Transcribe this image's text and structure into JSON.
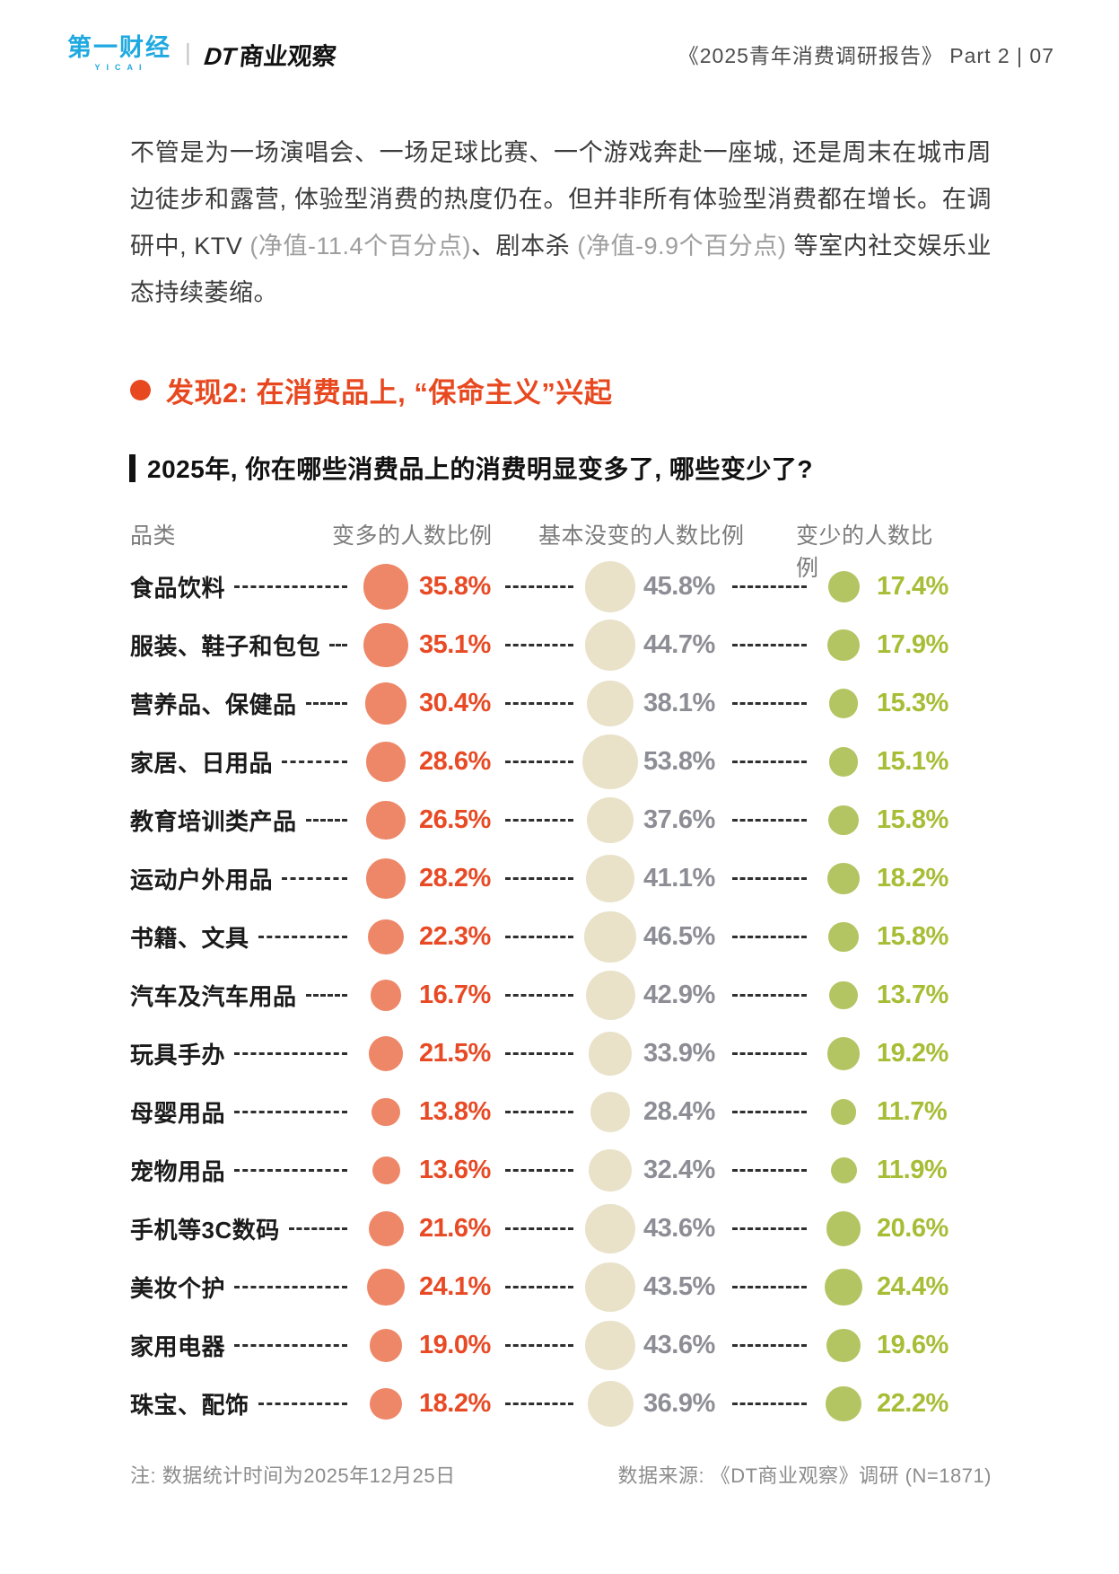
{
  "header": {
    "brand_cn": "第一财经",
    "brand_en": "YICAI",
    "separator": "|",
    "brand2_dt": "DT",
    "brand2_cn": "商业观察",
    "doc_title": "《2025青年消费调研报告》  Part 2  |  07"
  },
  "intro": {
    "segments": [
      {
        "text": "不管是为一场演唱会、一场足球比赛、一个游戏奔赴一座城, 还是周末在城市周边徒步和露营, 体验型消费的热度仍在。但并非所有体验型消费都在增长。在调研中, KTV ",
        "muted": false
      },
      {
        "text": "(净值-11.4个百分点)",
        "muted": true
      },
      {
        "text": "、剧本杀 ",
        "muted": false
      },
      {
        "text": "(净值-9.9个百分点)",
        "muted": true
      },
      {
        "text": " 等室内社交娱乐业态持续萎缩。",
        "muted": false
      }
    ]
  },
  "finding": {
    "label": "发现2: 在消费品上, “保命主义”兴起"
  },
  "question": "2025年, 你在哪些消费品上的消费明显变多了, 哪些变少了?",
  "table": {
    "headers": [
      "品类",
      "变多的人数比例",
      "基本没变的人数比例",
      "变少的人数比例"
    ]
  },
  "chart_data": {
    "type": "table",
    "subtype": "bubble-table",
    "title": "2025年, 你在哪些消费品上的消费明显变多了, 哪些变少了?",
    "categories": [
      "食品饮料",
      "服装、鞋子和包包",
      "营养品、保健品",
      "家居、日用品",
      "教育培训类产品",
      "运动户外用品",
      "书籍、文具",
      "汽车及汽车用品",
      "玩具手办",
      "母婴用品",
      "宠物用品",
      "手机等3C数码",
      "美妆个护",
      "家用电器",
      "珠宝、配饰"
    ],
    "series": [
      {
        "name": "变多的人数比例",
        "values": [
          35.8,
          35.1,
          30.4,
          28.6,
          26.5,
          28.2,
          22.3,
          16.7,
          21.5,
          13.8,
          13.6,
          21.6,
          24.1,
          19.0,
          18.2
        ]
      },
      {
        "name": "基本没变的人数比例",
        "values": [
          45.8,
          44.7,
          38.1,
          53.8,
          37.6,
          41.1,
          46.5,
          42.9,
          33.9,
          28.4,
          32.4,
          43.6,
          43.5,
          43.6,
          36.9
        ]
      },
      {
        "name": "变少的人数比例",
        "values": [
          17.4,
          17.9,
          15.3,
          15.1,
          15.8,
          18.2,
          15.8,
          13.7,
          19.2,
          11.7,
          11.9,
          20.6,
          24.4,
          19.6,
          22.2
        ]
      }
    ],
    "value_format": "percent_one_decimal",
    "layout": {
      "bubble_diameter_factor": 8.4,
      "bubble_scale": "diameter = factor * sqrt(value)",
      "leaders": "dashed"
    }
  },
  "footer": {
    "note": "注: 数据统计时间为2025年12月25日",
    "source": "数据来源: 《DT商业观察》调研 (N=1871)"
  },
  "colors": {
    "accent": "#E8481F",
    "brand_blue": "#1FA9E0",
    "up_circle": "#EE8768",
    "up_text": "#E84A25",
    "mid_circle": "#E9E2C9",
    "mid_text": "#8D8D95",
    "down_circle": "#B3C562",
    "down_text": "#A6BD35"
  }
}
